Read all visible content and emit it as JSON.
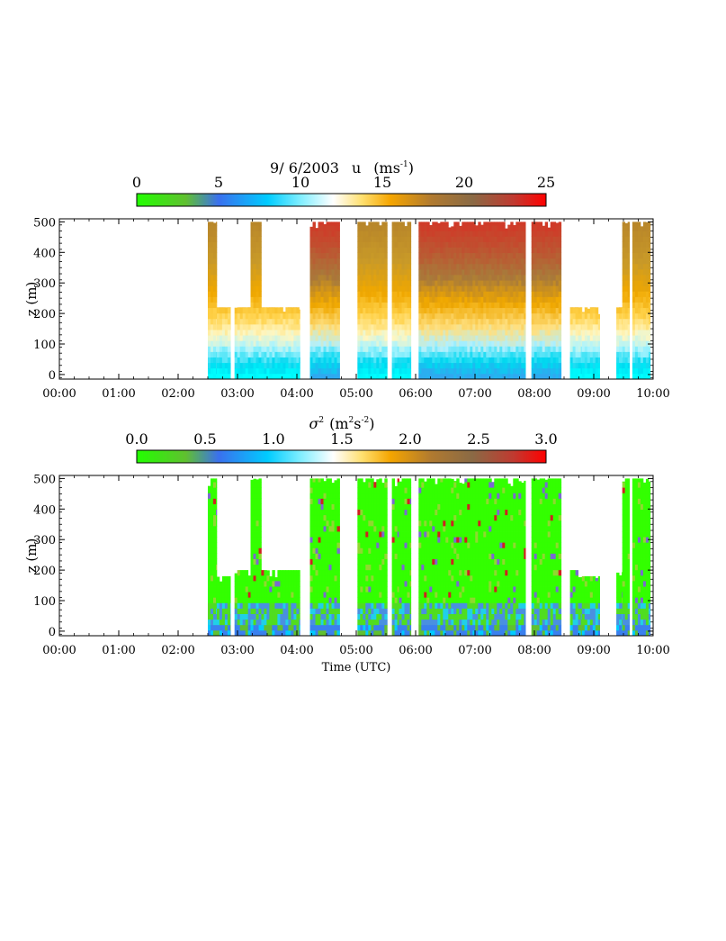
{
  "chart_data": [
    {
      "type": "heatmap",
      "title": {
        "date": "9/ 6/2003",
        "variable": "u",
        "units_prefix": "(ms",
        "units_sup": "-1",
        "units_suffix": ")"
      },
      "colorbar": {
        "range": [
          0,
          25
        ],
        "ticks": [
          "0",
          "5",
          "10",
          "15",
          "20",
          "25"
        ]
      },
      "ylabel": "z (m)",
      "ylim": [
        -15,
        510
      ],
      "yticks": [
        "0",
        "100",
        "200",
        "300",
        "400",
        "500"
      ],
      "xlim": [
        0,
        10
      ],
      "xticks": [
        "00:00",
        "01:00",
        "02:00",
        "03:00",
        "04:00",
        "05:00",
        "06:00",
        "07:00",
        "08:00",
        "09:00",
        "10:00"
      ],
      "segments": [
        {
          "start": 2.5,
          "end": 2.65,
          "zmax": 500
        },
        {
          "start": 2.65,
          "end": 2.88,
          "zmax": 220
        },
        {
          "start": 2.95,
          "end": 3.22,
          "zmax": 220
        },
        {
          "start": 3.22,
          "end": 3.4,
          "zmax": 500
        },
        {
          "start": 3.4,
          "end": 4.05,
          "zmax": 220
        },
        {
          "start": 4.22,
          "end": 4.72,
          "zmax": 500
        },
        {
          "start": 5.02,
          "end": 5.52,
          "zmax": 500
        },
        {
          "start": 5.6,
          "end": 5.72,
          "zmax": 500
        },
        {
          "start": 5.72,
          "end": 5.92,
          "zmax": 500
        },
        {
          "start": 6.05,
          "end": 7.85,
          "zmax": 500
        },
        {
          "start": 7.95,
          "end": 8.45,
          "zmax": 500
        },
        {
          "start": 8.6,
          "end": 8.8,
          "zmax": 220
        },
        {
          "start": 8.8,
          "end": 9.1,
          "zmax": 220
        },
        {
          "start": 9.38,
          "end": 9.48,
          "zmax": 220
        },
        {
          "start": 9.48,
          "end": 9.6,
          "zmax": 500
        },
        {
          "start": 9.65,
          "end": 9.95,
          "zmax": 500
        }
      ]
    },
    {
      "type": "heatmap",
      "title": {
        "variable": "σ",
        "variable_sup": "2",
        "units_prefix": "(m",
        "units_sup1": "2",
        "units_mid": "s",
        "units_sup2": "-2",
        "units_suffix": ")"
      },
      "colorbar": {
        "range": [
          0.0,
          3.0
        ],
        "ticks": [
          "0.0",
          "0.5",
          "1.0",
          "1.5",
          "2.0",
          "2.5",
          "3.0"
        ]
      },
      "ylabel": "z (m)",
      "xlabel": "Time (UTC)",
      "ylim": [
        -15,
        510
      ],
      "yticks": [
        "0",
        "100",
        "200",
        "300",
        "400",
        "500"
      ],
      "xlim": [
        0,
        10
      ],
      "xticks": [
        "00:00",
        "01:00",
        "02:00",
        "03:00",
        "04:00",
        "05:00",
        "06:00",
        "07:00",
        "08:00",
        "09:00",
        "10:00"
      ],
      "segments": [
        {
          "start": 2.5,
          "end": 2.65,
          "zmax": 500
        },
        {
          "start": 2.65,
          "end": 2.88,
          "zmax": 180
        },
        {
          "start": 2.95,
          "end": 3.22,
          "zmax": 200
        },
        {
          "start": 3.22,
          "end": 3.4,
          "zmax": 500
        },
        {
          "start": 3.4,
          "end": 4.05,
          "zmax": 200
        },
        {
          "start": 4.22,
          "end": 4.72,
          "zmax": 500
        },
        {
          "start": 5.02,
          "end": 5.52,
          "zmax": 500
        },
        {
          "start": 5.6,
          "end": 5.72,
          "zmax": 500
        },
        {
          "start": 5.72,
          "end": 5.92,
          "zmax": 500
        },
        {
          "start": 6.05,
          "end": 7.85,
          "zmax": 500
        },
        {
          "start": 7.95,
          "end": 8.45,
          "zmax": 500
        },
        {
          "start": 8.6,
          "end": 8.8,
          "zmax": 200
        },
        {
          "start": 8.8,
          "end": 9.1,
          "zmax": 180
        },
        {
          "start": 9.38,
          "end": 9.48,
          "zmax": 200
        },
        {
          "start": 9.48,
          "end": 9.6,
          "zmax": 500
        },
        {
          "start": 9.65,
          "end": 9.95,
          "zmax": 500
        }
      ]
    }
  ]
}
